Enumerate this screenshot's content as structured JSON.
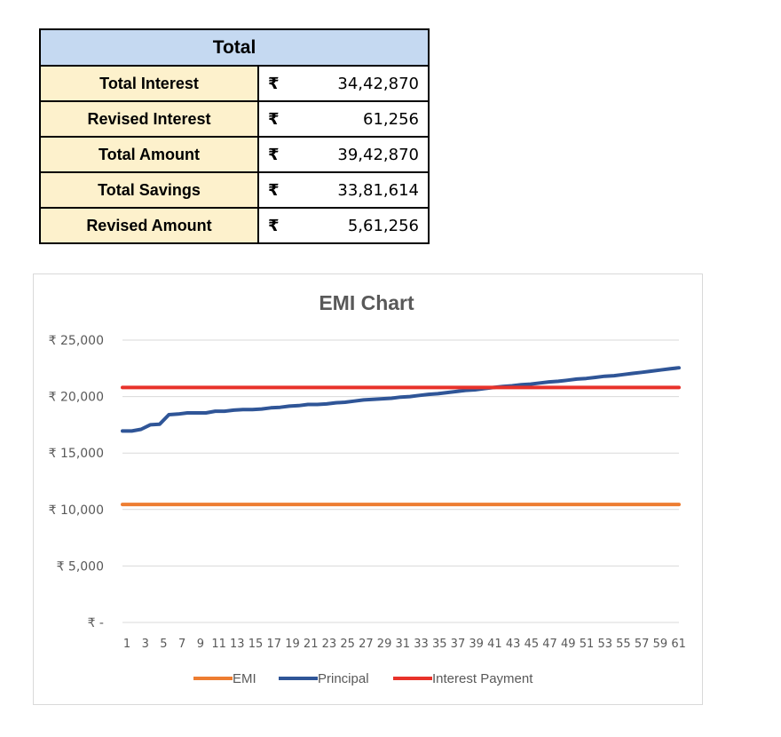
{
  "table": {
    "header": "Total",
    "rows": [
      {
        "label": "Total Interest",
        "currency": "₹",
        "value": "34,42,870"
      },
      {
        "label": "Revised Interest",
        "currency": "₹",
        "value": "61,256"
      },
      {
        "label": "Total Amount",
        "currency": "₹",
        "value": "39,42,870"
      },
      {
        "label": "Total Savings",
        "currency": "₹",
        "value": "33,81,614"
      },
      {
        "label": "Revised Amount",
        "currency": "₹",
        "value": "5,61,256"
      }
    ]
  },
  "chart_data": {
    "type": "line",
    "title": "EMI Chart",
    "xlabel": "",
    "ylabel": "",
    "ylim": [
      0,
      25000
    ],
    "y_tick_labels": [
      "₹ -",
      "₹ 5,000",
      "₹ 10,000",
      "₹ 15,000",
      "₹ 20,000",
      "₹ 25,000"
    ],
    "x_tick_labels": [
      "1",
      "3",
      "5",
      "7",
      "9",
      "11",
      "13",
      "15",
      "17",
      "19",
      "21",
      "23",
      "25",
      "27",
      "29",
      "31",
      "33",
      "35",
      "37",
      "39",
      "41",
      "43",
      "45",
      "47",
      "49",
      "51",
      "53",
      "55",
      "57",
      "59",
      "61"
    ],
    "x_range": [
      1,
      61
    ],
    "grid": true,
    "legend_position": "bottom",
    "series": [
      {
        "name": "EMI",
        "color": "#ed7d31",
        "values": [
          10450,
          10450,
          10450,
          10450,
          10450,
          10450,
          10450,
          10450,
          10450,
          10450,
          10450,
          10450,
          10450,
          10450,
          10450,
          10450,
          10450,
          10450,
          10450,
          10450,
          10450,
          10450,
          10450,
          10450,
          10450,
          10450,
          10450,
          10450,
          10450,
          10450,
          10450,
          10450,
          10450,
          10450,
          10450,
          10450,
          10450,
          10450,
          10450,
          10450,
          10450,
          10450,
          10450,
          10450,
          10450,
          10450,
          10450,
          10450,
          10450,
          10450,
          10450,
          10450,
          10450,
          10450,
          10450,
          10450,
          10450,
          10450,
          10450,
          10450,
          10450
        ]
      },
      {
        "name": "Principal",
        "color": "#2f5597",
        "values": [
          16950,
          16950,
          17100,
          17500,
          17550,
          18400,
          18450,
          18550,
          18550,
          18550,
          18700,
          18700,
          18800,
          18850,
          18850,
          18900,
          19000,
          19050,
          19150,
          19200,
          19300,
          19300,
          19350,
          19450,
          19500,
          19600,
          19700,
          19750,
          19800,
          19850,
          19950,
          20000,
          20100,
          20200,
          20250,
          20350,
          20450,
          20550,
          20600,
          20700,
          20800,
          20900,
          20950,
          21050,
          21100,
          21200,
          21300,
          21350,
          21450,
          21550,
          21600,
          21700,
          21800,
          21850,
          21950,
          22050,
          22150,
          22250,
          22350,
          22450,
          22550
        ]
      },
      {
        "name": "Interest Payment",
        "color": "#e8322a",
        "values": [
          20800,
          20800,
          20800,
          20800,
          20800,
          20800,
          20800,
          20800,
          20800,
          20800,
          20800,
          20800,
          20800,
          20800,
          20800,
          20800,
          20800,
          20800,
          20800,
          20800,
          20800,
          20800,
          20800,
          20800,
          20800,
          20800,
          20800,
          20800,
          20800,
          20800,
          20800,
          20800,
          20800,
          20800,
          20800,
          20800,
          20800,
          20800,
          20800,
          20800,
          20800,
          20800,
          20800,
          20800,
          20800,
          20800,
          20800,
          20800,
          20800,
          20800,
          20800,
          20800,
          20800,
          20800,
          20800,
          20800,
          20800,
          20800,
          20800,
          20800,
          20800
        ]
      }
    ]
  }
}
